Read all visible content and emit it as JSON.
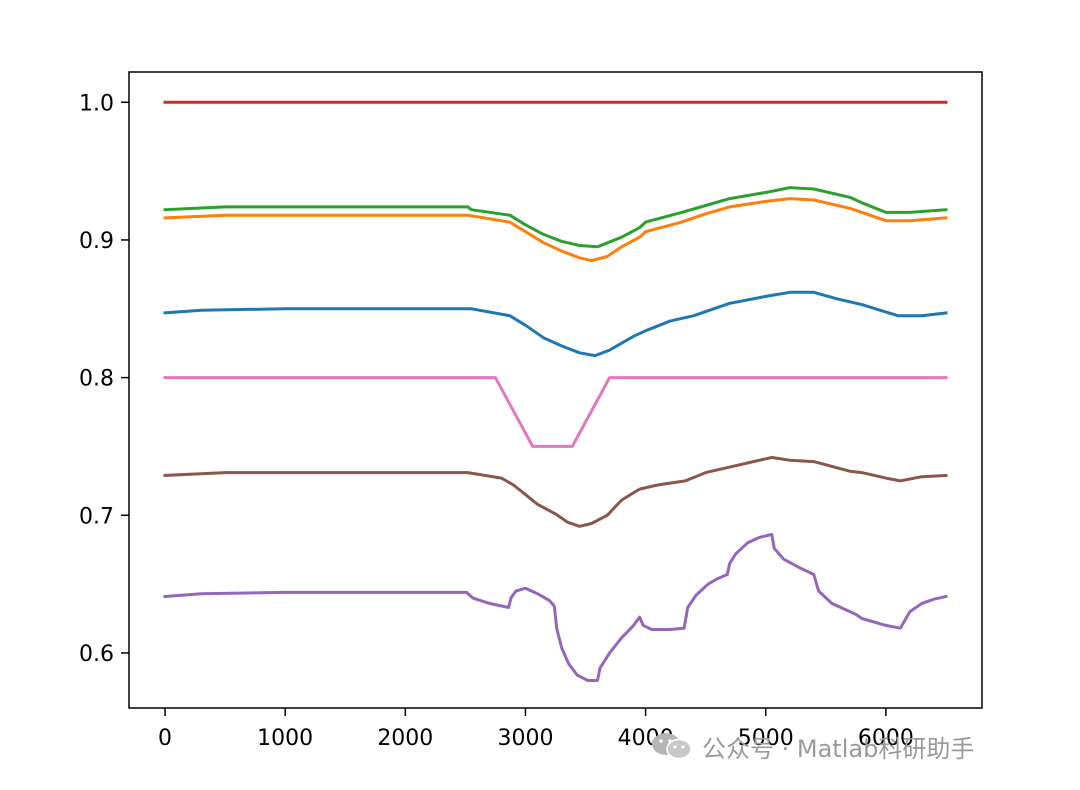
{
  "chart_data": {
    "type": "line",
    "title": "",
    "xlabel": "",
    "ylabel": "",
    "xlim": [
      -300,
      6800
    ],
    "ylim": [
      0.56,
      1.022
    ],
    "x_ticks": [
      0,
      1000,
      2000,
      3000,
      4000,
      5000,
      6000
    ],
    "y_ticks": [
      0.6,
      0.7,
      0.8,
      0.9,
      1.0
    ],
    "x_tick_labels": [
      "0",
      "1000",
      "2000",
      "3000",
      "4000",
      "5000",
      "6000"
    ],
    "y_tick_labels": [
      "0.6",
      "0.7",
      "0.8",
      "0.9",
      "1.0"
    ],
    "grid": false,
    "legend": "none",
    "series": [
      {
        "color": "#d62728",
        "points": [
          [
            0,
            1.0
          ],
          [
            6500,
            1.0
          ]
        ]
      },
      {
        "color": "#2ca02c",
        "points": [
          [
            0,
            0.922
          ],
          [
            500,
            0.924
          ],
          [
            2000,
            0.924
          ],
          [
            2520,
            0.924
          ],
          [
            2550,
            0.922
          ],
          [
            2870,
            0.918
          ],
          [
            3000,
            0.911
          ],
          [
            3150,
            0.904
          ],
          [
            3300,
            0.899
          ],
          [
            3450,
            0.896
          ],
          [
            3600,
            0.895
          ],
          [
            3800,
            0.902
          ],
          [
            3950,
            0.909
          ],
          [
            4000,
            0.913
          ],
          [
            4300,
            0.92
          ],
          [
            4500,
            0.925
          ],
          [
            4700,
            0.93
          ],
          [
            4900,
            0.933
          ],
          [
            5030,
            0.935
          ],
          [
            5200,
            0.938
          ],
          [
            5400,
            0.937
          ],
          [
            5700,
            0.931
          ],
          [
            5800,
            0.927
          ],
          [
            6000,
            0.92
          ],
          [
            6200,
            0.92
          ],
          [
            6500,
            0.922
          ]
        ]
      },
      {
        "color": "#ff7f0e",
        "points": [
          [
            0,
            0.916
          ],
          [
            500,
            0.918
          ],
          [
            2000,
            0.918
          ],
          [
            2520,
            0.918
          ],
          [
            2870,
            0.913
          ],
          [
            3000,
            0.906
          ],
          [
            3150,
            0.898
          ],
          [
            3300,
            0.892
          ],
          [
            3450,
            0.887
          ],
          [
            3550,
            0.885
          ],
          [
            3680,
            0.888
          ],
          [
            3800,
            0.895
          ],
          [
            3950,
            0.902
          ],
          [
            4000,
            0.906
          ],
          [
            4300,
            0.913
          ],
          [
            4500,
            0.919
          ],
          [
            4700,
            0.924
          ],
          [
            5000,
            0.928
          ],
          [
            5200,
            0.93
          ],
          [
            5400,
            0.929
          ],
          [
            5700,
            0.923
          ],
          [
            5800,
            0.92
          ],
          [
            6000,
            0.914
          ],
          [
            6200,
            0.914
          ],
          [
            6500,
            0.916
          ]
        ]
      },
      {
        "color": "#1f77b4",
        "points": [
          [
            0,
            0.847
          ],
          [
            300,
            0.849
          ],
          [
            1000,
            0.85
          ],
          [
            2000,
            0.85
          ],
          [
            2550,
            0.85
          ],
          [
            2870,
            0.845
          ],
          [
            3000,
            0.838
          ],
          [
            3150,
            0.829
          ],
          [
            3300,
            0.823
          ],
          [
            3450,
            0.818
          ],
          [
            3580,
            0.816
          ],
          [
            3700,
            0.82
          ],
          [
            3900,
            0.83
          ],
          [
            4000,
            0.834
          ],
          [
            4200,
            0.841
          ],
          [
            4400,
            0.845
          ],
          [
            4700,
            0.854
          ],
          [
            5000,
            0.859
          ],
          [
            5200,
            0.862
          ],
          [
            5400,
            0.862
          ],
          [
            5600,
            0.857
          ],
          [
            5800,
            0.853
          ],
          [
            6100,
            0.845
          ],
          [
            6300,
            0.845
          ],
          [
            6500,
            0.847
          ]
        ]
      },
      {
        "color": "#e377c2",
        "points": [
          [
            0,
            0.8
          ],
          [
            2750,
            0.8
          ],
          [
            3060,
            0.75
          ],
          [
            3390,
            0.75
          ],
          [
            3700,
            0.8
          ],
          [
            6500,
            0.8
          ]
        ]
      },
      {
        "color": "#8c564b",
        "points": [
          [
            0,
            0.729
          ],
          [
            500,
            0.731
          ],
          [
            2000,
            0.731
          ],
          [
            2520,
            0.731
          ],
          [
            2800,
            0.727
          ],
          [
            2900,
            0.722
          ],
          [
            3000,
            0.715
          ],
          [
            3100,
            0.708
          ],
          [
            3250,
            0.701
          ],
          [
            3350,
            0.695
          ],
          [
            3450,
            0.692
          ],
          [
            3550,
            0.694
          ],
          [
            3680,
            0.7
          ],
          [
            3800,
            0.711
          ],
          [
            3950,
            0.719
          ],
          [
            4100,
            0.722
          ],
          [
            4330,
            0.725
          ],
          [
            4500,
            0.731
          ],
          [
            4700,
            0.735
          ],
          [
            5000,
            0.741
          ],
          [
            5050,
            0.742
          ],
          [
            5200,
            0.74
          ],
          [
            5400,
            0.739
          ],
          [
            5700,
            0.732
          ],
          [
            5800,
            0.731
          ],
          [
            6000,
            0.727
          ],
          [
            6120,
            0.725
          ],
          [
            6300,
            0.728
          ],
          [
            6500,
            0.729
          ]
        ]
      },
      {
        "color": "#9467bd",
        "points": [
          [
            0,
            0.641
          ],
          [
            300,
            0.643
          ],
          [
            1000,
            0.644
          ],
          [
            2000,
            0.644
          ],
          [
            2510,
            0.644
          ],
          [
            2560,
            0.64
          ],
          [
            2700,
            0.636
          ],
          [
            2860,
            0.633
          ],
          [
            2880,
            0.64
          ],
          [
            2920,
            0.645
          ],
          [
            3000,
            0.647
          ],
          [
            3100,
            0.643
          ],
          [
            3200,
            0.638
          ],
          [
            3240,
            0.634
          ],
          [
            3260,
            0.618
          ],
          [
            3300,
            0.604
          ],
          [
            3360,
            0.592
          ],
          [
            3430,
            0.584
          ],
          [
            3520,
            0.58
          ],
          [
            3600,
            0.58
          ],
          [
            3620,
            0.589
          ],
          [
            3700,
            0.6
          ],
          [
            3800,
            0.611
          ],
          [
            3900,
            0.62
          ],
          [
            3950,
            0.626
          ],
          [
            3980,
            0.62
          ],
          [
            4050,
            0.617
          ],
          [
            4200,
            0.617
          ],
          [
            4320,
            0.618
          ],
          [
            4350,
            0.633
          ],
          [
            4420,
            0.642
          ],
          [
            4520,
            0.65
          ],
          [
            4600,
            0.654
          ],
          [
            4680,
            0.657
          ],
          [
            4700,
            0.665
          ],
          [
            4750,
            0.672
          ],
          [
            4850,
            0.68
          ],
          [
            4950,
            0.684
          ],
          [
            5050,
            0.686
          ],
          [
            5070,
            0.676
          ],
          [
            5150,
            0.668
          ],
          [
            5280,
            0.662
          ],
          [
            5400,
            0.657
          ],
          [
            5440,
            0.645
          ],
          [
            5550,
            0.636
          ],
          [
            5750,
            0.628
          ],
          [
            5800,
            0.625
          ],
          [
            6000,
            0.62
          ],
          [
            6120,
            0.618
          ],
          [
            6200,
            0.63
          ],
          [
            6300,
            0.636
          ],
          [
            6400,
            0.639
          ],
          [
            6500,
            0.641
          ]
        ]
      }
    ]
  },
  "watermark": {
    "text": "公众号 · Matlab科研助手",
    "icon": "wechat-icon"
  }
}
